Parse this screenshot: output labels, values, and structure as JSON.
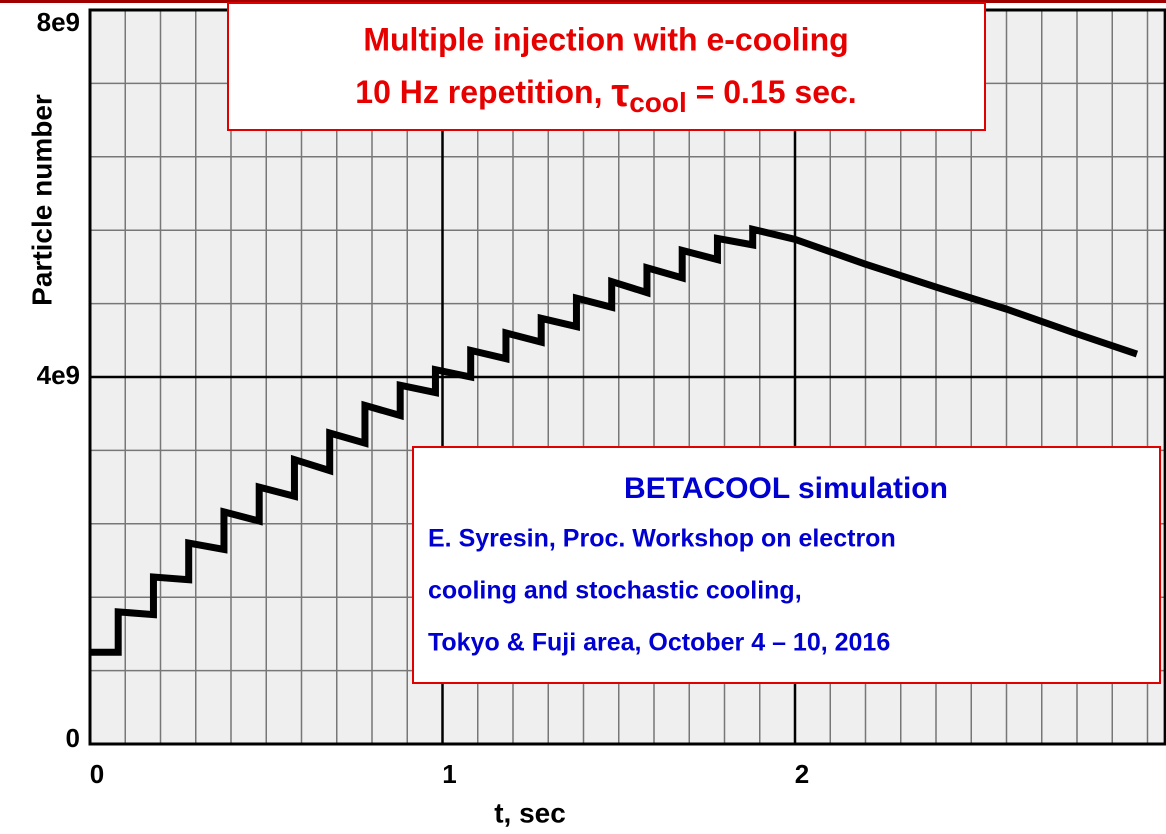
{
  "chart_data": {
    "type": "line",
    "title": "Multiple injection with e-cooling",
    "subtitle_parts": [
      "10 Hz repetition, ",
      "τ",
      "cool",
      " = 0.15 sec."
    ],
    "annotation": {
      "heading": "BETACOOL simulation",
      "lines": [
        "E. Syresin, Proc. Workshop on electron",
        "cooling and stochastic cooling,",
        "Tokyo & Fuji area, October  4 – 10, 2016"
      ]
    },
    "x_label": "t, sec",
    "y_label": "Particle number",
    "xlim": [
      0,
      3.05
    ],
    "ylim": [
      0,
      8000000000.0
    ],
    "xticks": [
      0,
      1,
      2
    ],
    "yticks": [
      {
        "value": 0,
        "label": "0"
      },
      {
        "value": 4000000000.0,
        "label": "4e9"
      },
      {
        "value": 8000000000.0,
        "label": "8e9"
      }
    ],
    "xgrid": [
      0.1,
      0.2,
      0.3,
      0.4,
      0.5,
      0.6,
      0.7,
      0.8,
      0.9,
      1.1,
      1.2,
      1.3,
      1.4,
      1.5,
      1.6,
      1.7,
      1.8,
      1.9,
      2.1,
      2.2,
      2.3,
      2.4,
      2.5,
      2.6,
      2.7,
      2.8,
      2.9,
      3.0
    ],
    "ygrid": [
      800000000.0,
      1600000000.0,
      2400000000.0,
      3200000000.0,
      4800000000.0,
      5600000000.0,
      6400000000.0,
      7200000000.0
    ],
    "grid": true,
    "series": [
      {
        "name": "Particle number",
        "color": "#000000",
        "x": [
          0,
          0.08,
          0.08,
          0.18,
          0.18,
          0.28,
          0.28,
          0.38,
          0.38,
          0.48,
          0.48,
          0.58,
          0.58,
          0.68,
          0.68,
          0.78,
          0.78,
          0.88,
          0.88,
          0.98,
          0.98,
          1.08,
          1.08,
          1.18,
          1.18,
          1.28,
          1.28,
          1.38,
          1.38,
          1.48,
          1.48,
          1.58,
          1.58,
          1.68,
          1.68,
          1.78,
          1.78,
          1.88,
          1.88,
          2.0,
          2.2,
          2.4,
          2.6,
          2.8,
          2.97
        ],
        "values": [
          1000000000.0,
          1000000000.0,
          1440000000.0,
          1410000000.0,
          1820000000.0,
          1790000000.0,
          2190000000.0,
          2120000000.0,
          2530000000.0,
          2430000000.0,
          2800000000.0,
          2700000000.0,
          3100000000.0,
          2980000000.0,
          3390000000.0,
          3280000000.0,
          3690000000.0,
          3580000000.0,
          3910000000.0,
          3830000000.0,
          4080000000.0,
          4000000000.0,
          4290000000.0,
          4200000000.0,
          4480000000.0,
          4380000000.0,
          4640000000.0,
          4550000000.0,
          4860000000.0,
          4760000000.0,
          5040000000.0,
          4920000000.0,
          5190000000.0,
          5080000000.0,
          5380000000.0,
          5280000000.0,
          5510000000.0,
          5440000000.0,
          5610000000.0,
          5500000000.0,
          5230000000.0,
          4980000000.0,
          4740000000.0,
          4470000000.0,
          4250000000.0
        ]
      }
    ]
  }
}
